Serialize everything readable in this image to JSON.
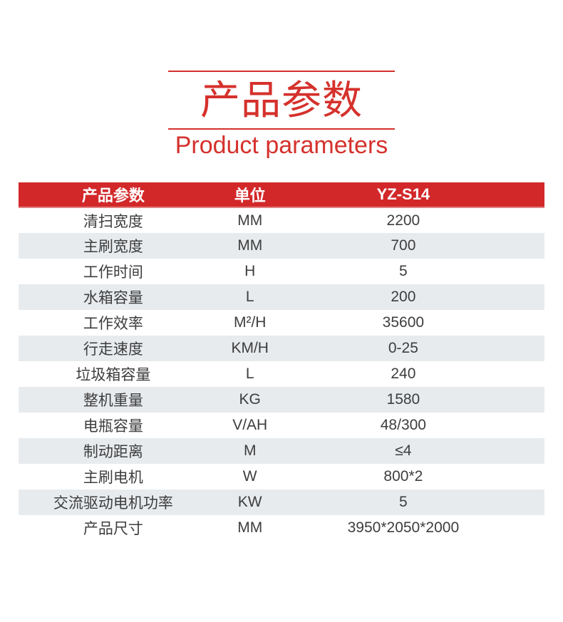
{
  "title": {
    "zh": "产品参数",
    "en": "Product parameters",
    "accent_red": "#d5312c"
  },
  "table": {
    "header_bg": "#d2282a",
    "header_text_color": "#ffffff",
    "alt_row_bg": "#e8ebee",
    "body_text_color": "#3d3d3d",
    "headers": [
      "产品参数",
      "单位",
      "YZ-S14"
    ],
    "rows": [
      {
        "label": "清扫宽度",
        "unit": "MM",
        "value": "2200"
      },
      {
        "label": "主刷宽度",
        "unit": "MM",
        "value": "700"
      },
      {
        "label": "工作时间",
        "unit": "H",
        "value": "5"
      },
      {
        "label": "水箱容量",
        "unit": "L",
        "value": "200"
      },
      {
        "label": "工作效率",
        "unit": "M²/H",
        "value": "35600"
      },
      {
        "label": "行走速度",
        "unit": "KM/H",
        "value": "0-25"
      },
      {
        "label": "垃圾箱容量",
        "unit": "L",
        "value": "240"
      },
      {
        "label": "整机重量",
        "unit": "KG",
        "value": "1580"
      },
      {
        "label": "电瓶容量",
        "unit": "V/AH",
        "value": "48/300"
      },
      {
        "label": "制动距离",
        "unit": "M",
        "value": "≤4"
      },
      {
        "label": "主刷电机",
        "unit": "W",
        "value": "800*2"
      },
      {
        "label": "交流驱动电机功率",
        "unit": "KW",
        "value": "5"
      },
      {
        "label": "产品尺寸",
        "unit": "MM",
        "value": "3950*2050*2000"
      }
    ]
  }
}
